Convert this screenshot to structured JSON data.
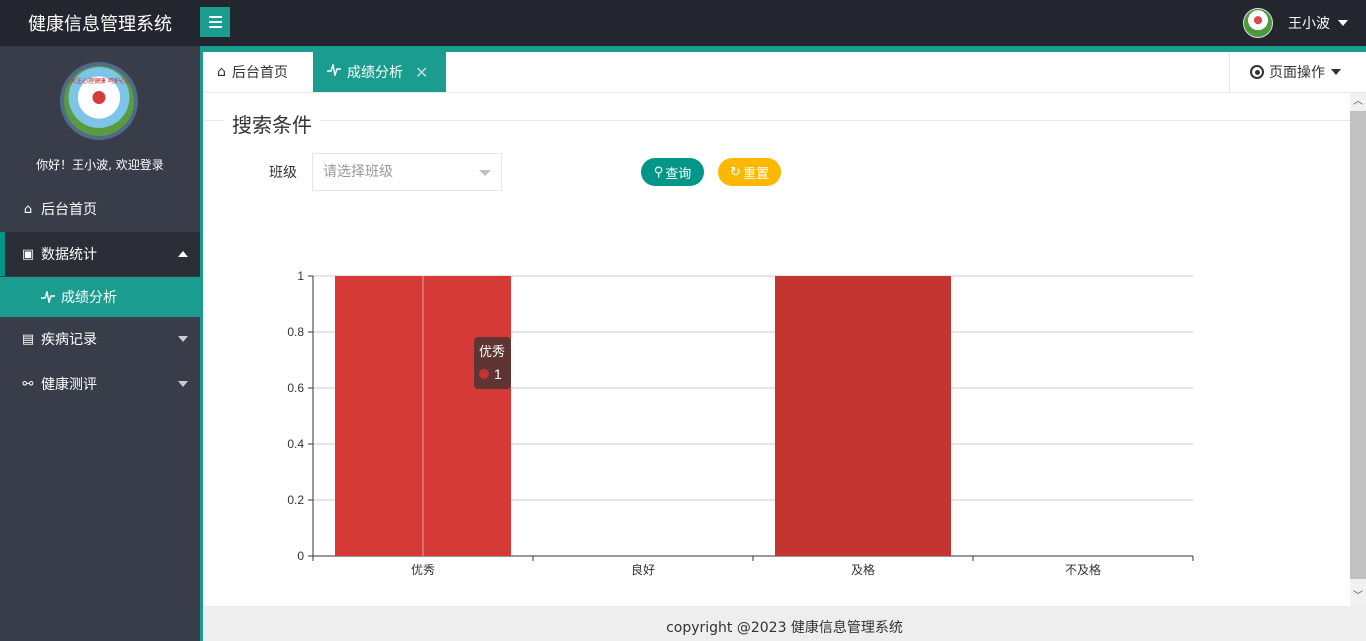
{
  "app": {
    "title": "健康信息管理系统"
  },
  "header": {
    "user_name": "王小波"
  },
  "sidebar": {
    "welcome": "你好！王小波, 欢迎登录",
    "avatar_text": "关注心理健康 呵护心灵成长",
    "items": [
      {
        "label": "后台首页",
        "icon": "home-icon"
      },
      {
        "label": "数据统计",
        "icon": "chart-icon",
        "expanded": true
      },
      {
        "label": "成绩分析",
        "icon": "pulse-icon"
      },
      {
        "label": "疾病记录",
        "icon": "clipboard-icon"
      },
      {
        "label": "健康测评",
        "icon": "link-icon"
      }
    ]
  },
  "tabs": {
    "items": [
      {
        "label": "后台首页",
        "icon": "home-icon"
      },
      {
        "label": "成绩分析",
        "icon": "pulse-icon"
      }
    ],
    "page_ops": "页面操作"
  },
  "search": {
    "legend": "搜索条件",
    "class_label": "班级",
    "class_placeholder": "请选择班级",
    "query_button": "查询",
    "reset_button": "重置"
  },
  "chart_data": {
    "type": "bar",
    "categories": [
      "优秀",
      "良好",
      "及格",
      "不及格"
    ],
    "values": [
      1,
      0,
      1,
      0
    ],
    "yticks": [
      "0",
      "0.2",
      "0.4",
      "0.6",
      "0.8",
      "1"
    ],
    "ylim": [
      0,
      1
    ],
    "grid": true,
    "bar_colors": [
      "#d63a36",
      "#d63a36",
      "#c23531",
      "#c23531"
    ],
    "tooltip": {
      "category": "优秀",
      "value": "1"
    }
  },
  "footer": {
    "text": "copyright @2023 健康信息管理系统"
  },
  "colors": {
    "accent": "#1a9d8e",
    "sidebar": "#393d49",
    "topbar": "#23262e",
    "reset": "#ffb800"
  }
}
